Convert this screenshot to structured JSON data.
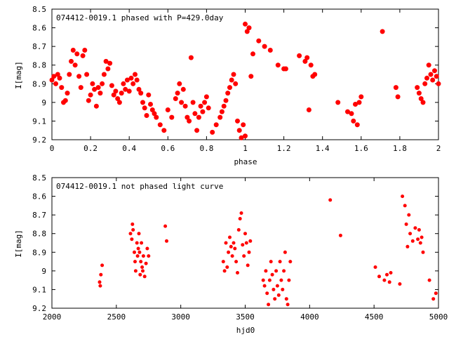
{
  "chart_data": [
    {
      "type": "scatter",
      "title": "074412-0019.1 phased with P=429.0day",
      "xlabel": "phase",
      "ylabel": "I[mag]",
      "xlim": [
        0,
        2
      ],
      "ylim": [
        9.2,
        8.5
      ],
      "y_inverted": true,
      "grid": false,
      "legend": "none",
      "marker": "filled-circle",
      "color": "#ff0000",
      "x_ticks": [
        "0",
        "0.2",
        "0.4",
        "0.6",
        "0.8",
        "1",
        "1.2",
        "1.4",
        "1.6",
        "1.8",
        "2"
      ],
      "y_ticks": [
        "8.5",
        "8.6",
        "8.7",
        "8.8",
        "8.9",
        "9",
        "9.1",
        "9.2"
      ],
      "series": [
        {
          "x": [
            0.0,
            0.01,
            0.02,
            0.03,
            0.04,
            0.05,
            0.06,
            0.07,
            0.08,
            0.09,
            0.1,
            0.11,
            0.12,
            0.13,
            0.14,
            0.15,
            0.16,
            0.17,
            0.18,
            0.19,
            0.2,
            0.21,
            0.22,
            0.23,
            0.24,
            0.25,
            0.26,
            0.27,
            0.28,
            0.29,
            0.3,
            0.31,
            0.32,
            0.33,
            0.34,
            0.35,
            0.36,
            0.37,
            0.38,
            0.39,
            0.4,
            0.41,
            0.42,
            0.43,
            0.44,
            0.45,
            0.46,
            0.47,
            0.48,
            0.49,
            0.5,
            0.51,
            0.52,
            0.53,
            0.54,
            0.56,
            0.58,
            0.6,
            0.62,
            0.64,
            0.65,
            0.66,
            0.67,
            0.68,
            0.69,
            0.7,
            0.71,
            0.72,
            0.73,
            0.74,
            0.75,
            0.76,
            0.77,
            0.78,
            0.79,
            0.8,
            0.81,
            0.83,
            0.85,
            0.87,
            0.88,
            0.89,
            0.9,
            0.91,
            0.92,
            0.93,
            0.94,
            0.95,
            0.96,
            0.97,
            0.98,
            0.99,
            1.0,
            1.0,
            1.01,
            1.02,
            1.03,
            1.04,
            1.07,
            1.1,
            1.13,
            1.17,
            1.2,
            1.21,
            1.28,
            1.31,
            1.32,
            1.33,
            1.34,
            1.35,
            1.36,
            1.48,
            1.53,
            1.55,
            1.56,
            1.57,
            1.58,
            1.59,
            1.6,
            1.71,
            1.78,
            1.79,
            1.89,
            1.9,
            1.91,
            1.92,
            1.93,
            1.94,
            1.95,
            1.96,
            1.97,
            1.98,
            1.99,
            2.0
          ],
          "y": [
            8.88,
            8.86,
            8.9,
            8.85,
            8.87,
            8.92,
            9.0,
            8.99,
            8.95,
            8.85,
            8.78,
            8.72,
            8.8,
            8.74,
            8.86,
            8.92,
            8.75,
            8.72,
            8.85,
            8.99,
            8.96,
            8.9,
            8.93,
            9.02,
            8.92,
            8.95,
            8.9,
            8.85,
            8.78,
            8.82,
            8.79,
            8.91,
            8.96,
            8.94,
            8.98,
            9.0,
            8.95,
            8.9,
            8.93,
            8.88,
            8.94,
            8.87,
            8.9,
            8.85,
            8.88,
            8.93,
            8.95,
            9.0,
            9.03,
            9.07,
            8.96,
            9.01,
            9.04,
            9.06,
            9.08,
            9.12,
            9.15,
            9.04,
            9.08,
            8.98,
            8.95,
            8.9,
            9.0,
            8.93,
            9.02,
            9.08,
            9.1,
            8.76,
            9.0,
            9.06,
            9.15,
            9.08,
            9.02,
            9.05,
            9.0,
            8.97,
            9.03,
            9.16,
            9.12,
            9.08,
            9.05,
            9.02,
            8.99,
            8.95,
            8.92,
            8.88,
            8.85,
            8.9,
            9.1,
            9.15,
            9.19,
            9.12,
            9.18,
            8.58,
            8.62,
            8.6,
            8.86,
            8.74,
            8.67,
            8.7,
            8.72,
            8.8,
            8.82,
            8.82,
            8.75,
            8.78,
            8.76,
            9.04,
            8.8,
            8.86,
            8.85,
            9.0,
            9.05,
            9.06,
            9.1,
            9.01,
            9.12,
            9.0,
            8.97,
            8.62,
            8.92,
            8.97,
            8.92,
            8.95,
            8.98,
            9.0,
            8.9,
            8.87,
            8.8,
            8.85,
            8.88,
            8.83,
            8.86,
            8.9
          ],
          "marker_size": 3.5
        }
      ]
    },
    {
      "type": "scatter",
      "title": "074412-0019.1 not phased light curve",
      "xlabel": "hjd0",
      "ylabel": "I[mag]",
      "xlim": [
        2000,
        5000
      ],
      "ylim": [
        9.2,
        8.5
      ],
      "y_inverted": true,
      "grid": false,
      "legend": "none",
      "marker": "filled-circle",
      "color": "#ff0000",
      "x_ticks": [
        "2000",
        "2500",
        "3000",
        "3500",
        "4000",
        "4500",
        "5000"
      ],
      "y_ticks": [
        "8.5",
        "8.6",
        "8.7",
        "8.8",
        "8.9",
        "9",
        "9.1",
        "9.2"
      ],
      "series": [
        {
          "x": [
            2370,
            2375,
            2380,
            2390,
            2610,
            2620,
            2625,
            2630,
            2640,
            2645,
            2650,
            2660,
            2665,
            2670,
            2675,
            2680,
            2685,
            2690,
            2695,
            2700,
            2705,
            2710,
            2720,
            2730,
            2740,
            2750,
            2880,
            2890,
            3330,
            3340,
            3350,
            3360,
            3370,
            3380,
            3390,
            3400,
            3410,
            3420,
            3430,
            3440,
            3450,
            3460,
            3470,
            3480,
            3490,
            3500,
            3510,
            3520,
            3530,
            3540,
            3640,
            3650,
            3660,
            3670,
            3680,
            3690,
            3700,
            3710,
            3720,
            3730,
            3740,
            3750,
            3760,
            3770,
            3780,
            3790,
            3800,
            3810,
            3820,
            3830,
            3840,
            3850,
            4160,
            4240,
            4510,
            4540,
            4580,
            4600,
            4620,
            4630,
            4700,
            4720,
            4740,
            4750,
            4760,
            4770,
            4780,
            4800,
            4820,
            4840,
            4850,
            4860,
            4870,
            4880,
            4930,
            4960,
            4980
          ],
          "y": [
            9.06,
            9.08,
            9.02,
            8.97,
            8.8,
            8.83,
            8.75,
            8.78,
            8.9,
            8.95,
            9.0,
            8.85,
            8.92,
            8.88,
            8.8,
            8.9,
            9.02,
            8.95,
            8.85,
            8.98,
            9.0,
            8.92,
            9.03,
            8.96,
            8.88,
            8.92,
            8.76,
            8.84,
            8.95,
            9.0,
            8.85,
            8.98,
            8.9,
            8.82,
            8.87,
            8.92,
            8.85,
            8.88,
            8.95,
            9.01,
            8.78,
            8.72,
            8.69,
            8.86,
            8.92,
            8.8,
            8.85,
            8.97,
            8.9,
            8.84,
            9.05,
            9.08,
            9.0,
            9.12,
            9.18,
            9.05,
            8.95,
            9.02,
            9.1,
            9.15,
            9.0,
            9.08,
            9.13,
            8.95,
            9.05,
            9.1,
            9.0,
            8.9,
            9.15,
            9.18,
            9.05,
            8.95,
            8.62,
            8.81,
            8.98,
            9.03,
            9.05,
            9.02,
            9.06,
            9.01,
            9.07,
            8.6,
            8.65,
            8.75,
            8.87,
            8.7,
            8.8,
            8.84,
            8.77,
            8.83,
            8.78,
            8.85,
            8.82,
            8.9,
            9.05,
            9.15,
            9.12
          ],
          "marker_size": 2.5
        }
      ]
    }
  ]
}
